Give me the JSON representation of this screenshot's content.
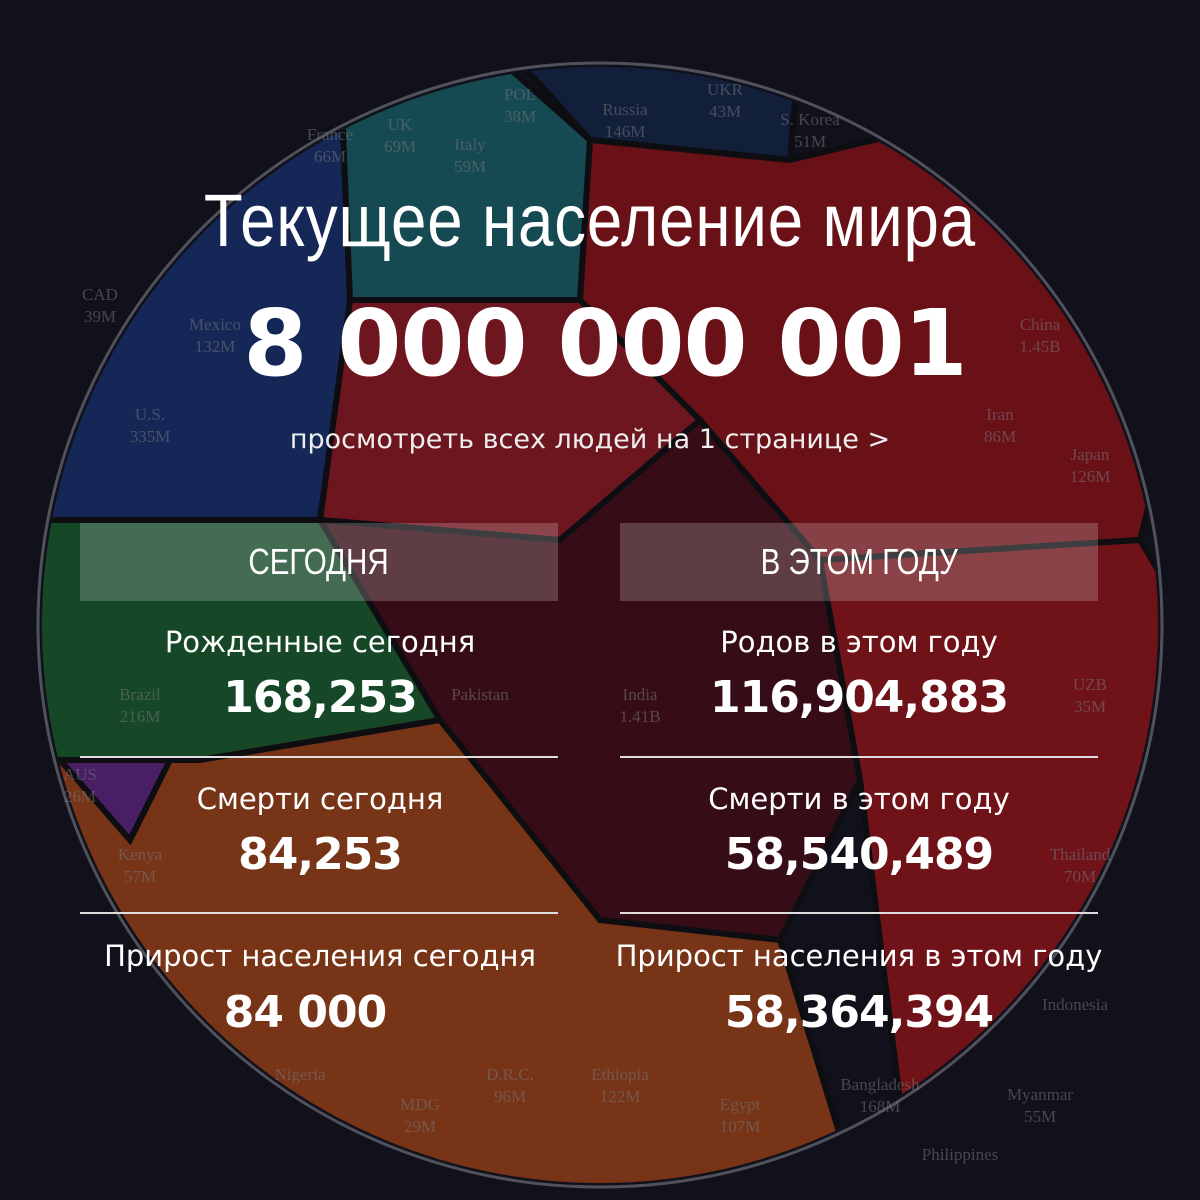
{
  "header": {
    "title": "Текущее население мира",
    "population": "8 000 000 001",
    "view_all_link": "просмотреть всех людей на 1 странице >"
  },
  "today": {
    "heading": "СЕГОДНЯ",
    "stats": [
      {
        "label": "Рожденные сегодня",
        "value": "168,253"
      },
      {
        "label": "Смерти сегодня",
        "value": "84,253"
      },
      {
        "label": "Прирост населения сегодня",
        "value": "84 000"
      }
    ]
  },
  "this_year": {
    "heading": "В ЭТОМ ГОДУ",
    "stats": [
      {
        "label": "Родов в этом году",
        "value": "116,904,883"
      },
      {
        "label": "Смерти в этом году",
        "value": "58,540,489"
      },
      {
        "label": "Прирост населения в этом году",
        "value": "58,364,394"
      }
    ]
  },
  "background_map": {
    "labels": [
      {
        "name": "POL",
        "pop": "38M"
      },
      {
        "name": "Russia",
        "pop": "146M"
      },
      {
        "name": "UKR",
        "pop": "43M"
      },
      {
        "name": "S. Korea",
        "pop": "51M"
      },
      {
        "name": "UK",
        "pop": "69M"
      },
      {
        "name": "Italy",
        "pop": "59M"
      },
      {
        "name": "Mexico",
        "pop": "132M"
      },
      {
        "name": "CAD",
        "pop": "39M"
      },
      {
        "name": "France",
        "pop": "66M"
      },
      {
        "name": "China",
        "pop": "1.45B"
      },
      {
        "name": "U.S.",
        "pop": "335M"
      },
      {
        "name": "Iran",
        "pop": "86M"
      },
      {
        "name": "Japan",
        "pop": "126M"
      },
      {
        "name": "Brazil",
        "pop": "216M"
      },
      {
        "name": "India",
        "pop": "1.41B"
      },
      {
        "name": "UZB",
        "pop": "35M"
      },
      {
        "name": "Thailand",
        "pop": "70M"
      },
      {
        "name": "Indonesia",
        "pop": ""
      },
      {
        "name": "Kenya",
        "pop": "57M"
      },
      {
        "name": "AUS",
        "pop": "26M"
      },
      {
        "name": "Myanmar",
        "pop": "55M"
      },
      {
        "name": "Bangladesh",
        "pop": "168M"
      },
      {
        "name": "Ethiopia",
        "pop": "122M"
      },
      {
        "name": "Nigeria",
        "pop": ""
      },
      {
        "name": "Egypt",
        "pop": "107M"
      },
      {
        "name": "MDG",
        "pop": "29M"
      },
      {
        "name": "D.R.C.",
        "pop": "96M"
      },
      {
        "name": "Pakistan",
        "pop": ""
      },
      {
        "name": "Philippines",
        "pop": ""
      }
    ],
    "region_colors": {
      "north_america": "#1d3f8f",
      "europe": "#1f7f86",
      "russia": "#16305a",
      "east_asia": "#b8161c",
      "middle_east": "#c0202a",
      "south_asia": "#5a0f18",
      "south_america": "#1f7a3a",
      "africa": "#d2561a",
      "southeast_asia": "#c21a1e",
      "oceania": "#7a2fa8"
    }
  }
}
